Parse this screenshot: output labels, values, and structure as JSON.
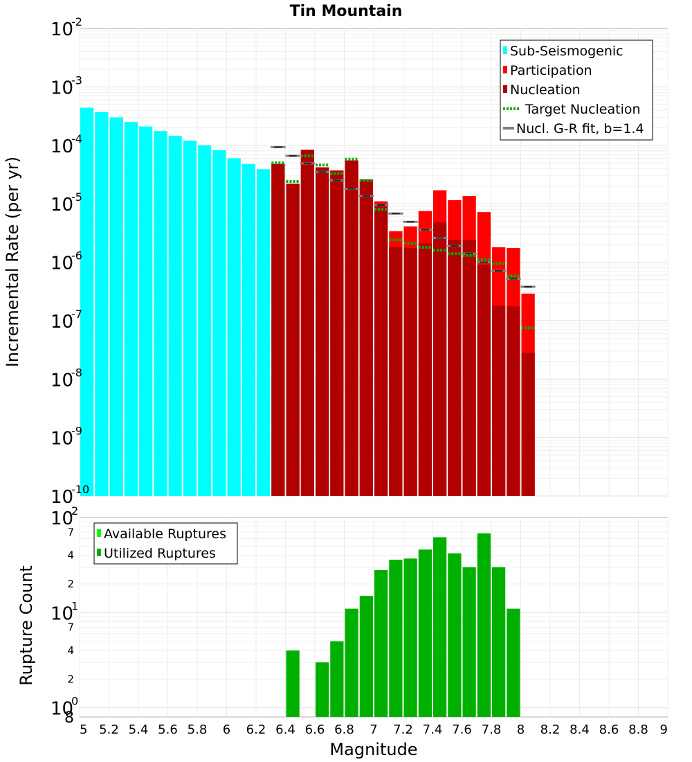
{
  "title": "Tin Mountain",
  "chart_data": [
    {
      "type": "bar",
      "id": "incremental-rate-chart",
      "title": "Tin Mountain",
      "xlabel": "",
      "ylabel": "Incremental Rate (per yr)",
      "yscale": "log",
      "xlim": [
        5,
        9
      ],
      "ylim": [
        1e-10,
        0.01
      ],
      "y_tick_labels": [
        {
          "value": 1e-10,
          "base": "10",
          "exp": "-10"
        },
        {
          "value": 1e-09,
          "base": "10",
          "exp": "-9"
        },
        {
          "value": 1e-08,
          "base": "10",
          "exp": "-8"
        },
        {
          "value": 1e-07,
          "base": "10",
          "exp": "-7"
        },
        {
          "value": 1e-06,
          "base": "10",
          "exp": "-6"
        },
        {
          "value": 1e-05,
          "base": "10",
          "exp": "-5"
        },
        {
          "value": 0.0001,
          "base": "10",
          "exp": "-4"
        },
        {
          "value": 0.001,
          "base": "10",
          "exp": "-3"
        },
        {
          "value": 0.01,
          "base": "10",
          "exp": "-2"
        }
      ],
      "legend": {
        "placement": "top-right",
        "entries": [
          {
            "label": "Sub-Seismogenic",
            "color": "#00ffff",
            "style": "bar"
          },
          {
            "label": "Participation",
            "color": "#ff0000",
            "style": "bar"
          },
          {
            "label": "Nucleation",
            "color": "#b00000",
            "style": "bar"
          },
          {
            "label": "Target Nucleation",
            "color": "#00b000",
            "style": "dotted"
          },
          {
            "label": "Nucl. G-R fit, b=1.4",
            "color": "#808080",
            "style": "line"
          }
        ]
      },
      "bin_width": 0.1,
      "series": [
        {
          "name": "Sub-Seismogenic",
          "color": "#00ffff",
          "x": [
            5.05,
            5.15,
            5.25,
            5.35,
            5.45,
            5.55,
            5.65,
            5.75,
            5.85,
            5.95,
            6.05,
            6.15,
            6.25
          ],
          "values": [
            0.00044,
            0.00037,
            0.0003,
            0.00025,
            0.00021,
            0.000175,
            0.000145,
            0.00012,
            0.0001,
            8.3e-05,
            6e-05,
            4.8e-05,
            3.9e-05
          ]
        },
        {
          "name": "Participation",
          "color": "#ff0000",
          "x": [
            6.35,
            6.45,
            6.55,
            6.65,
            6.75,
            6.85,
            6.95,
            7.05,
            7.15,
            7.25,
            7.35,
            7.45,
            7.55,
            7.65,
            7.75,
            7.85,
            7.95,
            8.05
          ],
          "values": [
            4.8e-05,
            2.2e-05,
            8.4e-05,
            4.2e-05,
            3.7e-05,
            5.5e-05,
            2.6e-05,
            1.1e-05,
            3.4e-06,
            4.1e-06,
            7.5e-06,
            1.7e-05,
            1.15e-05,
            1.35e-05,
            7.2e-06,
            1.8e-06,
            1.75e-06,
            2.9e-07
          ]
        },
        {
          "name": "Nucleation",
          "color": "#b00000",
          "x": [
            6.35,
            6.45,
            6.55,
            6.65,
            6.75,
            6.85,
            6.95,
            7.05,
            7.15,
            7.25,
            7.35,
            7.45,
            7.55,
            7.65,
            7.75,
            7.85,
            7.95,
            8.05
          ],
          "values": [
            4.8e-05,
            2.2e-05,
            8.4e-05,
            4.2e-05,
            3.7e-05,
            5.5e-05,
            2.6e-05,
            1e-05,
            1.8e-06,
            1.75e-06,
            2.1e-06,
            4.8e-06,
            2.4e-06,
            2.4e-06,
            9e-07,
            1.8e-07,
            1.75e-07,
            2.8e-08
          ]
        },
        {
          "name": "Target Nucleation",
          "color": "#00b000",
          "x": [
            6.35,
            6.45,
            6.55,
            6.65,
            6.75,
            6.85,
            6.95,
            7.05,
            7.15,
            7.25,
            7.35,
            7.45,
            7.55,
            7.65,
            7.75,
            7.85,
            7.95,
            8.05
          ],
          "values": [
            5e-05,
            2.4e-05,
            6.6e-05,
            4.6e-05,
            3.3e-05,
            5.8e-05,
            2.5e-05,
            8e-06,
            2.4e-06,
            2.1e-06,
            1.8e-06,
            1.6e-06,
            1.4e-06,
            1.3e-06,
            1.1e-06,
            9.5e-07,
            5.8e-07,
            7.5e-08
          ]
        },
        {
          "name": "Nucl. G-R fit, b=1.4",
          "color": "#808080",
          "x": [
            6.35,
            6.45,
            6.55,
            6.65,
            6.75,
            6.85,
            6.95,
            7.05,
            7.15,
            7.25,
            7.35,
            7.45,
            7.55,
            7.65,
            7.75,
            7.85,
            7.95,
            8.05
          ],
          "values": [
            9.3e-05,
            6.6e-05,
            4.9e-05,
            3.5e-05,
            2.5e-05,
            1.8e-05,
            1.35e-05,
            9.5e-06,
            6.8e-06,
            4.9e-06,
            3.6e-06,
            2.6e-06,
            1.9e-06,
            1.4e-06,
            1e-06,
            7.1e-07,
            5.2e-07,
            3.8e-07
          ]
        }
      ]
    },
    {
      "type": "bar",
      "id": "rupture-count-chart",
      "xlabel": "Magnitude",
      "ylabel": "Rupture Count",
      "yscale": "log",
      "xlim": [
        5,
        9
      ],
      "ylim": [
        0.8,
        100
      ],
      "x_ticks": [
        5,
        5.2,
        5.4,
        5.6,
        5.8,
        6,
        6.2,
        6.4,
        6.6,
        6.8,
        7,
        7.2,
        7.4,
        7.6,
        7.8,
        8,
        8.2,
        8.4,
        8.6,
        8.8,
        9
      ],
      "x_tick_labels": [
        "5",
        "5.2",
        "5.4",
        "5.6",
        "5.8",
        "6",
        "6.2",
        "6.4",
        "6.6",
        "6.8",
        "7",
        "7.2",
        "7.4",
        "7.6",
        "7.8",
        "8",
        "8.2",
        "8.4",
        "8.6",
        "8.8",
        "9"
      ],
      "y_major_ticks": [
        {
          "value": 1,
          "base": "10",
          "exp": "0"
        },
        {
          "value": 10,
          "base": "10",
          "exp": "1"
        },
        {
          "value": 100,
          "base": "10",
          "exp": "2"
        }
      ],
      "y_minor_tick_labels": [
        {
          "value": 0.8,
          "label": "8"
        },
        {
          "value": 2,
          "label": "2"
        },
        {
          "value": 4,
          "label": "4"
        },
        {
          "value": 7,
          "label": "7"
        },
        {
          "value": 20,
          "label": "2"
        },
        {
          "value": 40,
          "label": "4"
        },
        {
          "value": 70,
          "label": "7"
        }
      ],
      "legend": {
        "placement": "top-left",
        "entries": [
          {
            "label": "Available Ruptures",
            "color": "#00ff00"
          },
          {
            "label": "Utilized Ruptures",
            "color": "#00b000"
          }
        ]
      },
      "bin_width": 0.1,
      "series": [
        {
          "name": "Utilized Ruptures",
          "color": "#00b000",
          "x": [
            6.45,
            6.55,
            6.65,
            6.75,
            6.85,
            6.95,
            7.05,
            7.15,
            7.25,
            7.35,
            7.45,
            7.55,
            7.65,
            7.75,
            7.85,
            7.95
          ],
          "values": [
            4,
            0,
            3,
            5,
            11,
            15,
            28,
            36,
            37,
            46,
            62,
            42,
            30,
            68,
            30,
            11
          ]
        }
      ]
    }
  ]
}
